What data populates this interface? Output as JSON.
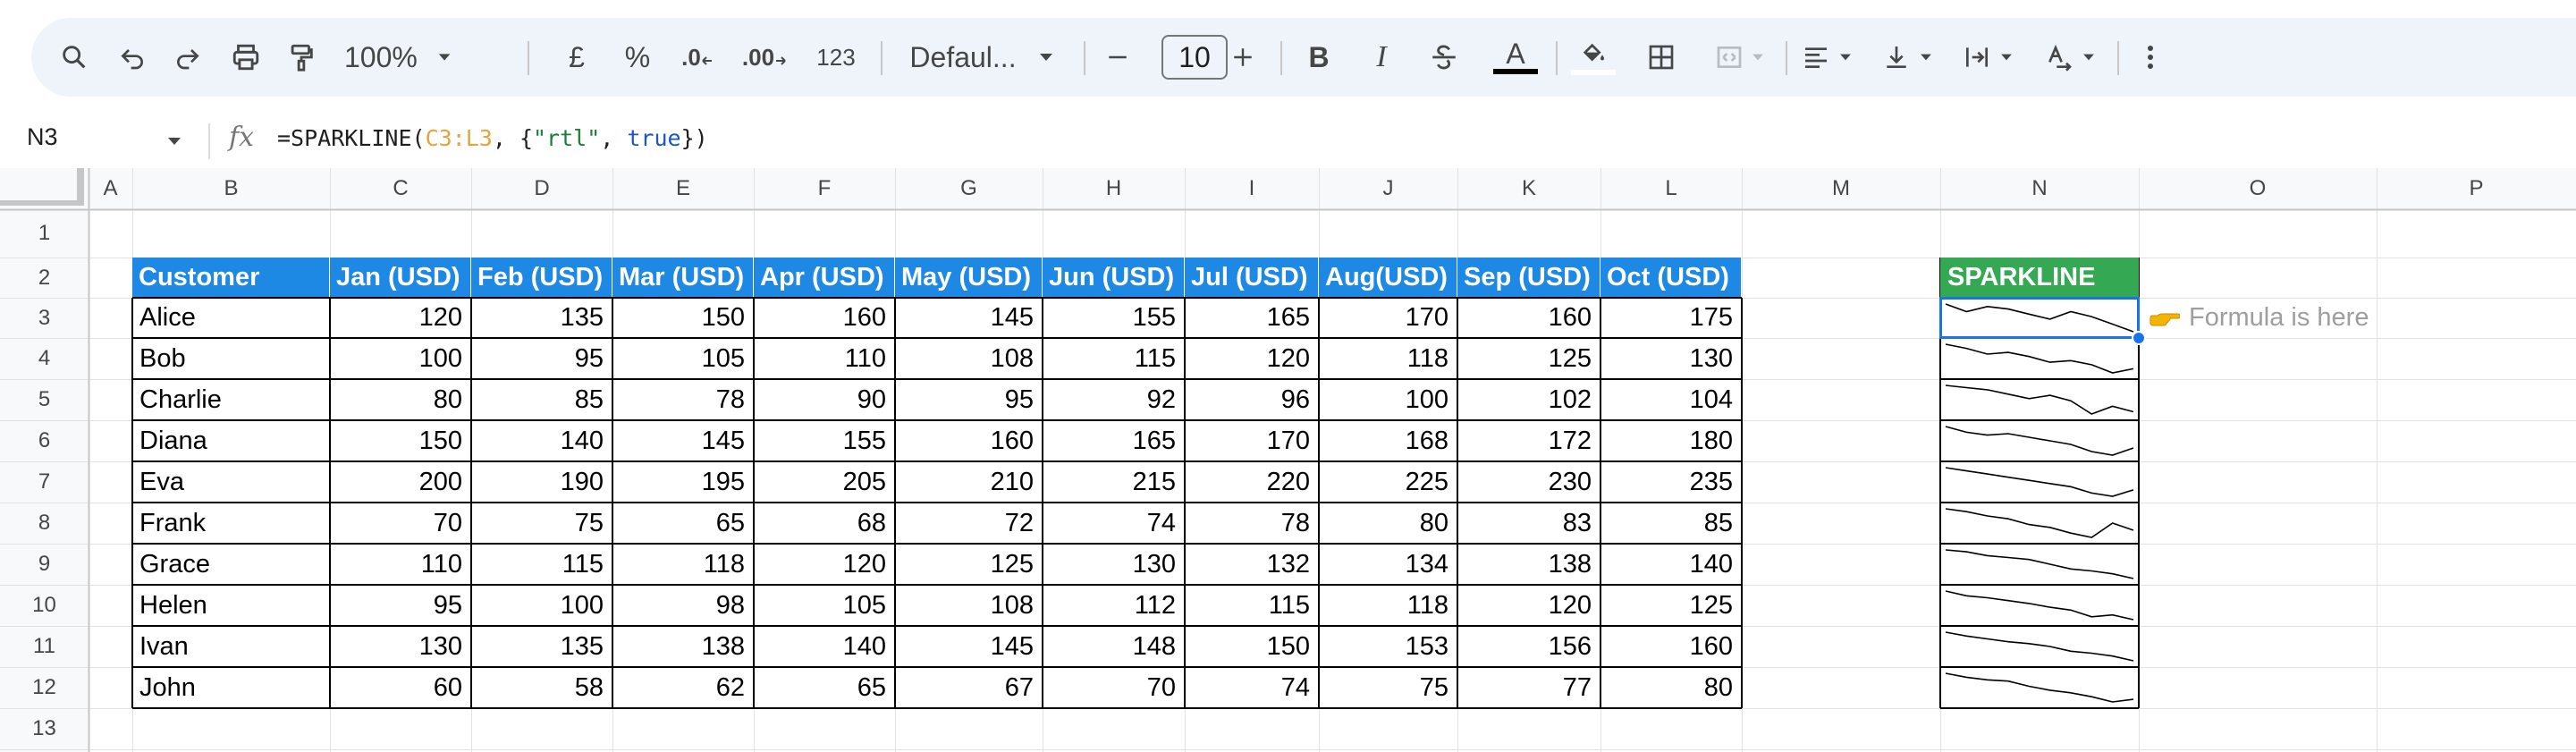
{
  "toolbar": {
    "zoom": "100%",
    "currency": "£",
    "percent": "%",
    "dec_decrease": ".0",
    "dec_increase": ".00",
    "number_format": "123",
    "font": "Defaul...",
    "font_size": "10",
    "minus": "−",
    "plus": "+",
    "bold": "B",
    "italic": "I",
    "text_color": "A",
    "icons": [
      "search-icon",
      "undo-icon",
      "redo-icon",
      "print-icon",
      "paint-format-icon",
      "chevron-down-icon",
      "strikethrough-icon",
      "fill-color-icon",
      "borders-icon",
      "merge-cells-icon",
      "align-left-icon",
      "valign-bottom-icon",
      "text-wrap-icon",
      "text-rotation-icon",
      "more-vert-icon"
    ]
  },
  "formula_bar": {
    "cell_ref": "N3",
    "fx": "fx",
    "formula_prefix": "=SPARKLINE(",
    "formula_range": "C3:L3",
    "formula_mid1": ", {",
    "formula_key": "\"rtl\"",
    "formula_mid2": ", ",
    "formula_bool": "true",
    "formula_suffix": "})"
  },
  "columns": [
    "A",
    "B",
    "C",
    "D",
    "E",
    "F",
    "G",
    "H",
    "I",
    "J",
    "K",
    "L",
    "M",
    "N",
    "O",
    "P"
  ],
  "rows": [
    "1",
    "2",
    "3",
    "4",
    "5",
    "6",
    "7",
    "8",
    "9",
    "10",
    "11",
    "12",
    "13"
  ],
  "table": {
    "headers": [
      "Customer",
      "Jan (USD)",
      "Feb (USD)",
      "Mar (USD)",
      "Apr (USD)",
      "May (USD)",
      "Jun (USD)",
      "Jul (USD)",
      "Aug(USD)",
      "Sep (USD)",
      "Oct (USD)"
    ],
    "rows": [
      {
        "name": "Alice",
        "values": [
          120,
          135,
          150,
          160,
          145,
          155,
          165,
          170,
          160,
          175
        ]
      },
      {
        "name": "Bob",
        "values": [
          100,
          95,
          105,
          110,
          108,
          115,
          120,
          118,
          125,
          130
        ]
      },
      {
        "name": "Charlie",
        "values": [
          80,
          85,
          78,
          90,
          95,
          92,
          96,
          100,
          102,
          104
        ]
      },
      {
        "name": "Diana",
        "values": [
          150,
          140,
          145,
          155,
          160,
          165,
          170,
          168,
          172,
          180
        ]
      },
      {
        "name": "Eva",
        "values": [
          200,
          190,
          195,
          205,
          210,
          215,
          220,
          225,
          230,
          235
        ]
      },
      {
        "name": "Frank",
        "values": [
          70,
          75,
          65,
          68,
          72,
          74,
          78,
          80,
          83,
          85
        ]
      },
      {
        "name": "Grace",
        "values": [
          110,
          115,
          118,
          120,
          125,
          130,
          132,
          134,
          138,
          140
        ]
      },
      {
        "name": "Helen",
        "values": [
          95,
          100,
          98,
          105,
          108,
          112,
          115,
          118,
          120,
          125
        ]
      },
      {
        "name": "Ivan",
        "values": [
          130,
          135,
          138,
          140,
          145,
          148,
          150,
          153,
          156,
          160
        ]
      },
      {
        "name": "John",
        "values": [
          60,
          58,
          62,
          65,
          67,
          70,
          74,
          75,
          77,
          80
        ]
      }
    ]
  },
  "sparkline": {
    "header": "SPARKLINE",
    "direction": "rtl",
    "selected_row": 0,
    "header_color": "#34a853",
    "line_color": "#000000",
    "selection_color": "#1a73e8"
  },
  "annotation": {
    "text": "Formula is here",
    "icon": "pointing-hand-icon"
  },
  "colors": {
    "table_header": "#1e88e5",
    "toolbar_bg": "#eff3fa"
  }
}
